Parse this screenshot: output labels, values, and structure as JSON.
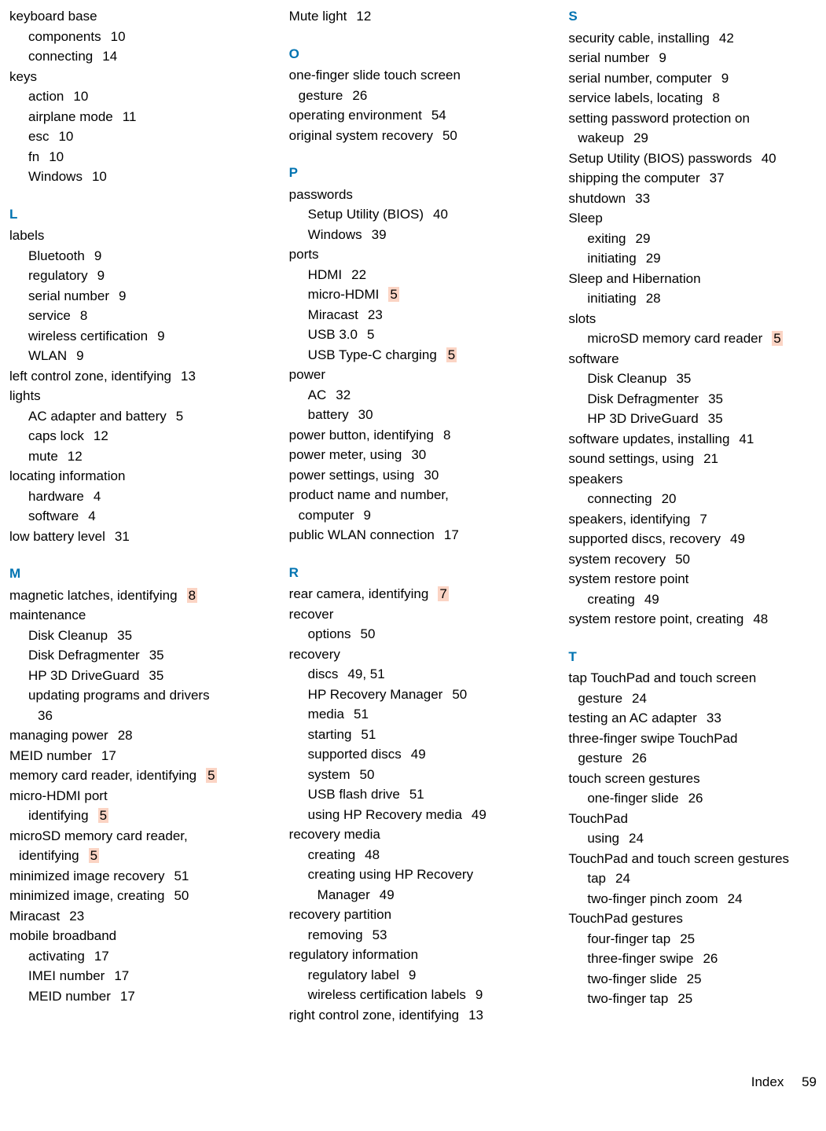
{
  "footer": {
    "label": "Index",
    "page": "59"
  },
  "columns": [
    [
      {
        "type": "entry",
        "indent": 0,
        "text": "keyboard base"
      },
      {
        "type": "entry",
        "indent": 1,
        "text": "components",
        "page": "10"
      },
      {
        "type": "entry",
        "indent": 1,
        "text": "connecting",
        "page": "14"
      },
      {
        "type": "entry",
        "indent": 0,
        "text": "keys"
      },
      {
        "type": "entry",
        "indent": 1,
        "text": "action",
        "page": "10"
      },
      {
        "type": "entry",
        "indent": 1,
        "text": "airplane mode",
        "page": "11"
      },
      {
        "type": "entry",
        "indent": 1,
        "text": "esc",
        "page": "10"
      },
      {
        "type": "entry",
        "indent": 1,
        "text": "fn",
        "page": "10"
      },
      {
        "type": "entry",
        "indent": 1,
        "text": "Windows",
        "page": "10"
      },
      {
        "type": "letter",
        "text": "L"
      },
      {
        "type": "entry",
        "indent": 0,
        "text": "labels"
      },
      {
        "type": "entry",
        "indent": 1,
        "text": "Bluetooth",
        "page": "9"
      },
      {
        "type": "entry",
        "indent": 1,
        "text": "regulatory",
        "page": "9"
      },
      {
        "type": "entry",
        "indent": 1,
        "text": "serial number",
        "page": "9"
      },
      {
        "type": "entry",
        "indent": 1,
        "text": "service",
        "page": "8"
      },
      {
        "type": "entry",
        "indent": 1,
        "text": "wireless certification",
        "page": "9"
      },
      {
        "type": "entry",
        "indent": 1,
        "text": "WLAN",
        "page": "9"
      },
      {
        "type": "entry",
        "indent": 0,
        "text": "left control zone, identifying",
        "page": "13"
      },
      {
        "type": "entry",
        "indent": 0,
        "text": "lights"
      },
      {
        "type": "entry",
        "indent": 1,
        "text": "AC adapter and battery",
        "page": "5"
      },
      {
        "type": "entry",
        "indent": 1,
        "text": "caps lock",
        "page": "12"
      },
      {
        "type": "entry",
        "indent": 1,
        "text": "mute",
        "page": "12"
      },
      {
        "type": "entry",
        "indent": 0,
        "text": "locating information"
      },
      {
        "type": "entry",
        "indent": 1,
        "text": "hardware",
        "page": "4"
      },
      {
        "type": "entry",
        "indent": 1,
        "text": "software",
        "page": "4"
      },
      {
        "type": "entry",
        "indent": 0,
        "text": "low battery level",
        "page": "31"
      },
      {
        "type": "letter",
        "text": "M"
      },
      {
        "type": "entry",
        "indent": 0,
        "text": "magnetic latches, identifying",
        "page": "8",
        "hl": true
      },
      {
        "type": "entry",
        "indent": 0,
        "text": "maintenance"
      },
      {
        "type": "entry",
        "indent": 1,
        "text": "Disk Cleanup",
        "page": "35"
      },
      {
        "type": "entry",
        "indent": 1,
        "text": "Disk Defragmenter",
        "page": "35"
      },
      {
        "type": "entry",
        "indent": 1,
        "text": "HP 3D DriveGuard",
        "page": "35"
      },
      {
        "type": "entry",
        "indent": 1,
        "text": "updating programs and drivers"
      },
      {
        "type": "entry",
        "indent": 2,
        "text": "36"
      },
      {
        "type": "entry",
        "indent": 0,
        "text": "managing power",
        "page": "28"
      },
      {
        "type": "entry",
        "indent": 0,
        "text": "MEID number",
        "page": "17"
      },
      {
        "type": "entry",
        "indent": 0,
        "text": "memory card reader, identifying",
        "page": "5",
        "hl": true
      },
      {
        "type": "entry",
        "indent": 0,
        "text": "micro-HDMI port"
      },
      {
        "type": "entry",
        "indent": 1,
        "text": "identifying",
        "page": "5",
        "hl": true
      },
      {
        "type": "entry",
        "indent": 0,
        "text": "microSD memory card reader,"
      },
      {
        "type": "entry",
        "indent": 0,
        "wrap": true,
        "text": "identifying",
        "page": "5",
        "hl": true
      },
      {
        "type": "entry",
        "indent": 0,
        "text": "minimized image recovery",
        "page": "51"
      },
      {
        "type": "entry",
        "indent": 0,
        "text": "minimized image, creating",
        "page": "50"
      },
      {
        "type": "entry",
        "indent": 0,
        "text": "Miracast",
        "page": "23"
      },
      {
        "type": "entry",
        "indent": 0,
        "text": "mobile broadband"
      },
      {
        "type": "entry",
        "indent": 1,
        "text": "activating",
        "page": "17"
      },
      {
        "type": "entry",
        "indent": 1,
        "text": "IMEI number",
        "page": "17"
      },
      {
        "type": "entry",
        "indent": 1,
        "text": "MEID number",
        "page": "17"
      }
    ],
    [
      {
        "type": "entry",
        "indent": 0,
        "text": "Mute light",
        "page": "12"
      },
      {
        "type": "letter",
        "text": "O"
      },
      {
        "type": "entry",
        "indent": 0,
        "text": "one-finger slide touch screen"
      },
      {
        "type": "entry",
        "indent": 0,
        "wrap": true,
        "text": "gesture",
        "page": "26"
      },
      {
        "type": "entry",
        "indent": 0,
        "text": "operating environment",
        "page": "54"
      },
      {
        "type": "entry",
        "indent": 0,
        "text": "original system recovery",
        "page": "50"
      },
      {
        "type": "letter",
        "text": "P"
      },
      {
        "type": "entry",
        "indent": 0,
        "text": "passwords"
      },
      {
        "type": "entry",
        "indent": 1,
        "text": "Setup Utility (BIOS)",
        "page": "40"
      },
      {
        "type": "entry",
        "indent": 1,
        "text": "Windows",
        "page": "39"
      },
      {
        "type": "entry",
        "indent": 0,
        "text": "ports"
      },
      {
        "type": "entry",
        "indent": 1,
        "text": "HDMI",
        "page": "22"
      },
      {
        "type": "entry",
        "indent": 1,
        "text": "micro-HDMI",
        "page": "5",
        "hl": true
      },
      {
        "type": "entry",
        "indent": 1,
        "text": "Miracast",
        "page": "23"
      },
      {
        "type": "entry",
        "indent": 1,
        "text": "USB 3.0",
        "page": "5"
      },
      {
        "type": "entry",
        "indent": 1,
        "text": "USB Type-C charging",
        "page": "5",
        "hl": true
      },
      {
        "type": "entry",
        "indent": 0,
        "text": "power"
      },
      {
        "type": "entry",
        "indent": 1,
        "text": "AC",
        "page": "32"
      },
      {
        "type": "entry",
        "indent": 1,
        "text": "battery",
        "page": "30"
      },
      {
        "type": "entry",
        "indent": 0,
        "text": "power button, identifying",
        "page": "8"
      },
      {
        "type": "entry",
        "indent": 0,
        "text": "power meter, using",
        "page": "30"
      },
      {
        "type": "entry",
        "indent": 0,
        "text": "power settings, using",
        "page": "30"
      },
      {
        "type": "entry",
        "indent": 0,
        "text": "product name and number,"
      },
      {
        "type": "entry",
        "indent": 0,
        "wrap": true,
        "text": "computer",
        "page": "9"
      },
      {
        "type": "entry",
        "indent": 0,
        "text": "public WLAN connection",
        "page": "17"
      },
      {
        "type": "letter",
        "text": "R"
      },
      {
        "type": "entry",
        "indent": 0,
        "text": "rear camera, identifying",
        "page": "7",
        "hl": true
      },
      {
        "type": "entry",
        "indent": 0,
        "text": "recover"
      },
      {
        "type": "entry",
        "indent": 1,
        "text": "options",
        "page": "50"
      },
      {
        "type": "entry",
        "indent": 0,
        "text": "recovery"
      },
      {
        "type": "entry",
        "indent": 1,
        "text": "discs",
        "page": "49, 51"
      },
      {
        "type": "entry",
        "indent": 1,
        "text": "HP Recovery Manager",
        "page": "50"
      },
      {
        "type": "entry",
        "indent": 1,
        "text": "media",
        "page": "51"
      },
      {
        "type": "entry",
        "indent": 1,
        "text": "starting",
        "page": "51"
      },
      {
        "type": "entry",
        "indent": 1,
        "text": "supported discs",
        "page": "49"
      },
      {
        "type": "entry",
        "indent": 1,
        "text": "system",
        "page": "50"
      },
      {
        "type": "entry",
        "indent": 1,
        "text": "USB flash drive",
        "page": "51"
      },
      {
        "type": "entry",
        "indent": 1,
        "text": "using HP Recovery media",
        "page": "49"
      },
      {
        "type": "entry",
        "indent": 0,
        "text": "recovery media"
      },
      {
        "type": "entry",
        "indent": 1,
        "text": "creating",
        "page": "48"
      },
      {
        "type": "entry",
        "indent": 1,
        "text": "creating using HP Recovery"
      },
      {
        "type": "entry",
        "indent": 2,
        "text": "Manager",
        "page": "49"
      },
      {
        "type": "entry",
        "indent": 0,
        "text": "recovery partition"
      },
      {
        "type": "entry",
        "indent": 1,
        "text": "removing",
        "page": "53"
      },
      {
        "type": "entry",
        "indent": 0,
        "text": "regulatory information"
      },
      {
        "type": "entry",
        "indent": 1,
        "text": "regulatory label",
        "page": "9"
      },
      {
        "type": "entry",
        "indent": 1,
        "text": "wireless certification labels",
        "page": "9"
      },
      {
        "type": "entry",
        "indent": 0,
        "text": "right control zone, identifying",
        "page": "13"
      }
    ],
    [
      {
        "type": "letter",
        "text": "S",
        "notop": true
      },
      {
        "type": "entry",
        "indent": 0,
        "text": "security cable, installing",
        "page": "42"
      },
      {
        "type": "entry",
        "indent": 0,
        "text": "serial number",
        "page": "9"
      },
      {
        "type": "entry",
        "indent": 0,
        "text": "serial number, computer",
        "page": "9"
      },
      {
        "type": "entry",
        "indent": 0,
        "text": "service labels, locating",
        "page": "8"
      },
      {
        "type": "entry",
        "indent": 0,
        "text": "setting password protection on"
      },
      {
        "type": "entry",
        "indent": 0,
        "wrap": true,
        "text": "wakeup",
        "page": "29"
      },
      {
        "type": "entry",
        "indent": 0,
        "text": "Setup Utility (BIOS) passwords",
        "page": "40"
      },
      {
        "type": "entry",
        "indent": 0,
        "text": "shipping the computer",
        "page": "37"
      },
      {
        "type": "entry",
        "indent": 0,
        "text": "shutdown",
        "page": "33"
      },
      {
        "type": "entry",
        "indent": 0,
        "text": "Sleep"
      },
      {
        "type": "entry",
        "indent": 1,
        "text": "exiting",
        "page": "29"
      },
      {
        "type": "entry",
        "indent": 1,
        "text": "initiating",
        "page": "29"
      },
      {
        "type": "entry",
        "indent": 0,
        "text": "Sleep and Hibernation"
      },
      {
        "type": "entry",
        "indent": 1,
        "text": "initiating",
        "page": "28"
      },
      {
        "type": "entry",
        "indent": 0,
        "text": "slots"
      },
      {
        "type": "entry",
        "indent": 1,
        "text": "microSD memory card reader",
        "page": "5",
        "hl": true
      },
      {
        "type": "entry",
        "indent": 0,
        "text": "software"
      },
      {
        "type": "entry",
        "indent": 1,
        "text": "Disk Cleanup",
        "page": "35"
      },
      {
        "type": "entry",
        "indent": 1,
        "text": "Disk Defragmenter",
        "page": "35"
      },
      {
        "type": "entry",
        "indent": 1,
        "text": "HP 3D DriveGuard",
        "page": "35"
      },
      {
        "type": "entry",
        "indent": 0,
        "text": "software updates, installing",
        "page": "41"
      },
      {
        "type": "entry",
        "indent": 0,
        "text": "sound settings, using",
        "page": "21"
      },
      {
        "type": "entry",
        "indent": 0,
        "text": "speakers"
      },
      {
        "type": "entry",
        "indent": 1,
        "text": "connecting",
        "page": "20"
      },
      {
        "type": "entry",
        "indent": 0,
        "text": "speakers, identifying",
        "page": "7"
      },
      {
        "type": "entry",
        "indent": 0,
        "text": "supported discs, recovery",
        "page": "49"
      },
      {
        "type": "entry",
        "indent": 0,
        "text": "system recovery",
        "page": "50"
      },
      {
        "type": "entry",
        "indent": 0,
        "text": "system restore point"
      },
      {
        "type": "entry",
        "indent": 1,
        "text": "creating",
        "page": "49"
      },
      {
        "type": "entry",
        "indent": 0,
        "text": "system restore point, creating",
        "page": "48"
      },
      {
        "type": "letter",
        "text": "T"
      },
      {
        "type": "entry",
        "indent": 0,
        "text": "tap TouchPad and touch screen"
      },
      {
        "type": "entry",
        "indent": 0,
        "wrap": true,
        "text": "gesture",
        "page": "24"
      },
      {
        "type": "entry",
        "indent": 0,
        "text": "testing an AC adapter",
        "page": "33"
      },
      {
        "type": "entry",
        "indent": 0,
        "text": "three-finger swipe TouchPad"
      },
      {
        "type": "entry",
        "indent": 0,
        "wrap": true,
        "text": "gesture",
        "page": "26"
      },
      {
        "type": "entry",
        "indent": 0,
        "text": "touch screen gestures"
      },
      {
        "type": "entry",
        "indent": 1,
        "text": "one-finger slide",
        "page": "26"
      },
      {
        "type": "entry",
        "indent": 0,
        "text": "TouchPad"
      },
      {
        "type": "entry",
        "indent": 1,
        "text": "using",
        "page": "24"
      },
      {
        "type": "entry",
        "indent": 0,
        "text": "TouchPad and touch screen gestures"
      },
      {
        "type": "entry",
        "indent": 1,
        "text": "tap",
        "page": "24"
      },
      {
        "type": "entry",
        "indent": 1,
        "text": "two-finger pinch zoom",
        "page": "24"
      },
      {
        "type": "entry",
        "indent": 0,
        "text": "TouchPad gestures"
      },
      {
        "type": "entry",
        "indent": 1,
        "text": "four-finger tap",
        "page": "25"
      },
      {
        "type": "entry",
        "indent": 1,
        "text": "three-finger swipe",
        "page": "26"
      },
      {
        "type": "entry",
        "indent": 1,
        "text": "two-finger slide",
        "page": "25"
      },
      {
        "type": "entry",
        "indent": 1,
        "text": "two-finger tap",
        "page": "25"
      }
    ]
  ]
}
